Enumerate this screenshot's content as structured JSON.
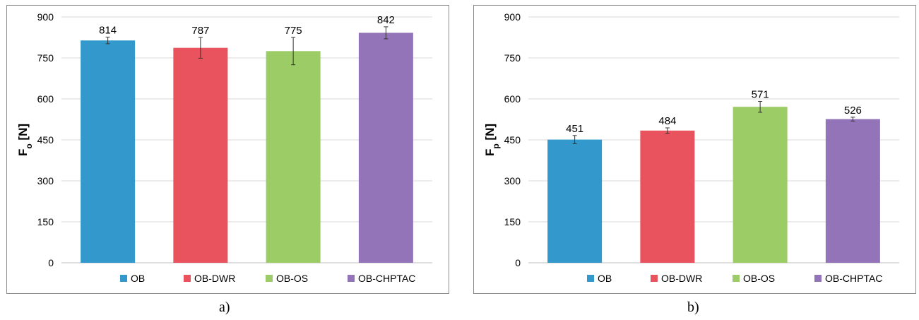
{
  "colors": {
    "OB": "#3399cc",
    "OB-DWR": "#e8535e",
    "OB-OS": "#9ccc66",
    "OB-CHPTAC": "#9474b8",
    "grid": "#d9d9d9",
    "axis": "#000000"
  },
  "captions": {
    "a": "a)",
    "b": "b)"
  },
  "chart_data": [
    {
      "type": "bar",
      "ylabel_main": "F",
      "ylabel_sub": "o",
      "ylabel_unit": " [N]",
      "ylim": [
        0,
        900
      ],
      "yticks": [
        0,
        150,
        300,
        450,
        600,
        750,
        900
      ],
      "grid": true,
      "legend_position": "bottom",
      "categories": [
        "OB",
        "OB-DWR",
        "OB-OS",
        "OB-CHPTAC"
      ],
      "values": [
        814,
        787,
        775,
        842
      ],
      "errors": [
        12,
        38,
        50,
        22
      ],
      "data_labels": [
        "814",
        "787",
        "775",
        "842"
      ]
    },
    {
      "type": "bar",
      "ylabel_main": "F",
      "ylabel_sub": "p",
      "ylabel_unit": " [N]",
      "ylim": [
        0,
        900
      ],
      "yticks": [
        0,
        150,
        300,
        450,
        600,
        750,
        900
      ],
      "grid": true,
      "legend_position": "bottom",
      "categories": [
        "OB",
        "OB-DWR",
        "OB-OS",
        "OB-CHPTAC"
      ],
      "values": [
        451,
        484,
        571,
        526
      ],
      "errors": [
        15,
        10,
        20,
        7
      ],
      "data_labels": [
        "451",
        "484",
        "571",
        "526"
      ]
    }
  ]
}
